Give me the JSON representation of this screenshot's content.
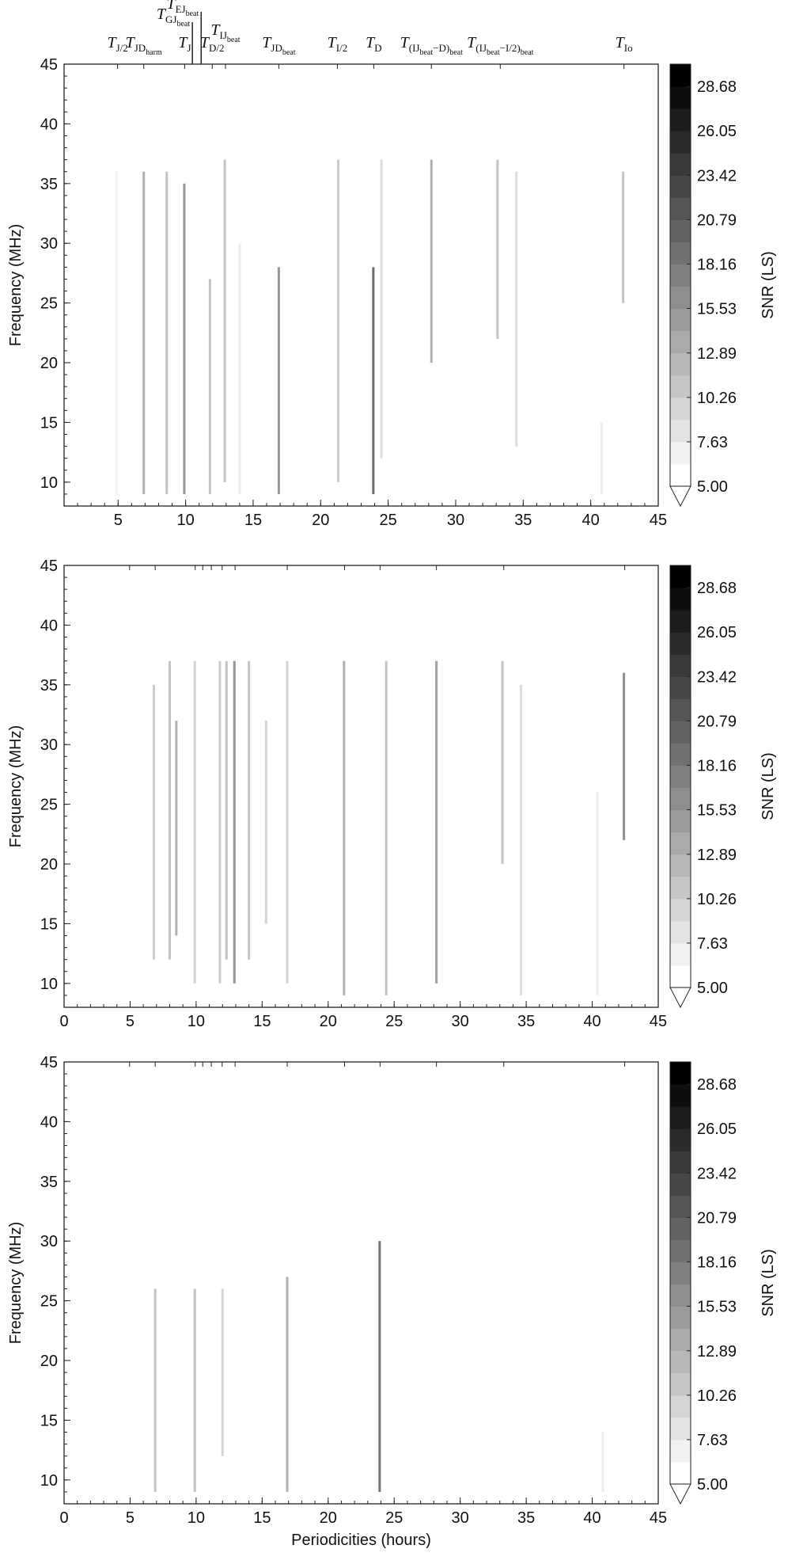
{
  "chart_data": [
    {
      "type": "heatmap",
      "ylabel": "Frequency (MHz)",
      "colorbar_label": "SNR (LS)",
      "xlim": [
        1,
        45
      ],
      "xticks": [
        5,
        10,
        15,
        20,
        25,
        30,
        35,
        40,
        45
      ],
      "ylim": [
        8,
        45
      ],
      "yticks": [
        10,
        15,
        20,
        25,
        30,
        35,
        40,
        45
      ],
      "clim": [
        5,
        30
      ],
      "n_levels": 19,
      "cticks": [
        {
          "value": 5,
          "label": "5.00"
        },
        7.63,
        10.26,
        12.89,
        15.53,
        18.16,
        20.79,
        23.42,
        26.05,
        28.68
      ],
      "annotations": [
        {
          "x": 4.96,
          "parts": [
            {
              "text": "T",
              "level": 0
            },
            {
              "text": "J/2",
              "level": 1
            }
          ]
        },
        {
          "x": 6.9,
          "parts": [
            {
              "text": "T",
              "level": 0
            },
            {
              "text": "JD",
              "level": 1
            },
            {
              "text": "harm",
              "level": 2
            }
          ]
        },
        {
          "x": 9.93,
          "parts": [
            {
              "text": "T",
              "level": 0
            },
            {
              "text": "J",
              "level": 1
            }
          ]
        },
        {
          "x": 10.5,
          "parts": [
            {
              "text": "T",
              "level": 0
            },
            {
              "text": "GJ",
              "level": 1
            },
            {
              "text": "beat",
              "level": 2
            }
          ]
        },
        {
          "x": 11.15,
          "parts": [
            {
              "text": "T",
              "level": 0
            },
            {
              "text": "EJ",
              "level": 1
            },
            {
              "text": "beat",
              "level": 2
            }
          ]
        },
        {
          "x": 11.97,
          "parts": [
            {
              "text": "T",
              "level": 0
            },
            {
              "text": "D/2",
              "level": 1
            }
          ]
        },
        {
          "x": 12.95,
          "parts": [
            {
              "text": "T",
              "level": 0
            },
            {
              "text": "IJ",
              "level": 1
            },
            {
              "text": "beat",
              "level": 2
            }
          ]
        },
        {
          "x": 16.9,
          "parts": [
            {
              "text": "T",
              "level": 0
            },
            {
              "text": "JD",
              "level": 1
            },
            {
              "text": "beat",
              "level": 2
            }
          ]
        },
        {
          "x": 21.24,
          "parts": [
            {
              "text": "T",
              "level": 0
            },
            {
              "text": "I/2",
              "level": 1
            }
          ]
        },
        {
          "x": 23.93,
          "parts": [
            {
              "text": "T",
              "level": 0
            },
            {
              "text": "D",
              "level": 1
            }
          ]
        },
        {
          "x": 28.2,
          "parts": [
            {
              "text": "T",
              "level": 0
            },
            {
              "text": "(IJ",
              "level": 1
            },
            {
              "text": "beat",
              "level": 2
            },
            {
              "text": "−D)",
              "level": 1
            },
            {
              "text": "beat",
              "level": 2
            }
          ]
        },
        {
          "x": 33.3,
          "parts": [
            {
              "text": "T",
              "level": 0
            },
            {
              "text": "(IJ",
              "level": 1
            },
            {
              "text": "beat",
              "level": 2
            },
            {
              "text": "−I/2)",
              "level": 1
            },
            {
              "text": "beat",
              "level": 2
            }
          ]
        },
        {
          "x": 42.46,
          "parts": [
            {
              "text": "T",
              "level": 0
            },
            {
              "text": "Io",
              "level": 1
            }
          ]
        }
      ],
      "streaks": {
        "x": [
          4.9,
          6.9,
          8.6,
          9.9,
          11.8,
          12.9,
          14.0,
          16.9,
          21.3,
          23.9,
          24.5,
          28.2,
          33.1,
          34.5,
          40.8,
          42.4
        ],
        "y_low": [
          9,
          9,
          9,
          9,
          9,
          10,
          9,
          9,
          10,
          9,
          12,
          20,
          22,
          13,
          9,
          25
        ],
        "y_high": [
          36,
          36,
          36,
          35,
          27,
          37,
          30,
          28,
          37,
          28,
          37,
          37,
          37,
          36,
          15,
          36
        ],
        "values": [
          6,
          14,
          12,
          17,
          12,
          12,
          7,
          17,
          11,
          22,
          9,
          14,
          12,
          9,
          7,
          12
        ]
      }
    },
    {
      "type": "heatmap",
      "ylabel": "Frequency (MHz)",
      "colorbar_label": "SNR (LS)",
      "xlim": [
        0,
        45
      ],
      "xticks": [
        0,
        5,
        10,
        15,
        20,
        25,
        30,
        35,
        40,
        45
      ],
      "ylim": [
        8,
        45
      ],
      "yticks": [
        10,
        15,
        20,
        25,
        30,
        35,
        40,
        45
      ],
      "clim": [
        5,
        30
      ],
      "n_levels": 19,
      "cticks": [
        {
          "value": 5,
          "label": "5.00"
        },
        7.63,
        10.26,
        12.89,
        15.53,
        18.16,
        20.79,
        23.42,
        26.05,
        28.68
      ],
      "streaks": {
        "x": [
          6.8,
          8.0,
          8.5,
          9.9,
          11.8,
          12.3,
          12.9,
          14.0,
          15.3,
          16.9,
          21.2,
          24.4,
          28.2,
          33.2,
          34.6,
          40.4,
          42.4
        ],
        "y_low": [
          12,
          12,
          14,
          10,
          10,
          12,
          10,
          12,
          15,
          10,
          9,
          9,
          10,
          20,
          9,
          9,
          22
        ],
        "y_high": [
          35,
          37,
          32,
          37,
          37,
          37,
          37,
          37,
          32,
          37,
          37,
          37,
          37,
          37,
          35,
          26,
          36
        ],
        "values": [
          11,
          12,
          14,
          10,
          11,
          12,
          17,
          12,
          10,
          10,
          14,
          12,
          16,
          12,
          9,
          7,
          18
        ]
      }
    },
    {
      "type": "heatmap",
      "ylabel": "Frequency (MHz)",
      "xlabel": "Periodicities (hours)",
      "colorbar_label": "SNR (LS)",
      "xlim": [
        0,
        45
      ],
      "xticks": [
        0,
        5,
        10,
        15,
        20,
        25,
        30,
        35,
        40,
        45
      ],
      "ylim": [
        8,
        45
      ],
      "yticks": [
        10,
        15,
        20,
        25,
        30,
        35,
        40,
        45
      ],
      "clim": [
        5,
        30
      ],
      "n_levels": 19,
      "cticks": [
        {
          "value": 5,
          "label": "5.00"
        },
        7.63,
        10.26,
        12.89,
        15.53,
        18.16,
        20.79,
        23.42,
        26.05,
        28.68
      ],
      "streaks": {
        "x": [
          6.9,
          9.9,
          12.0,
          16.9,
          23.9,
          40.8
        ],
        "y_low": [
          9,
          9,
          12,
          9,
          9,
          9
        ],
        "y_high": [
          26,
          26,
          26,
          27,
          30,
          14
        ],
        "values": [
          12,
          12,
          10,
          14,
          21,
          7
        ]
      }
    }
  ]
}
